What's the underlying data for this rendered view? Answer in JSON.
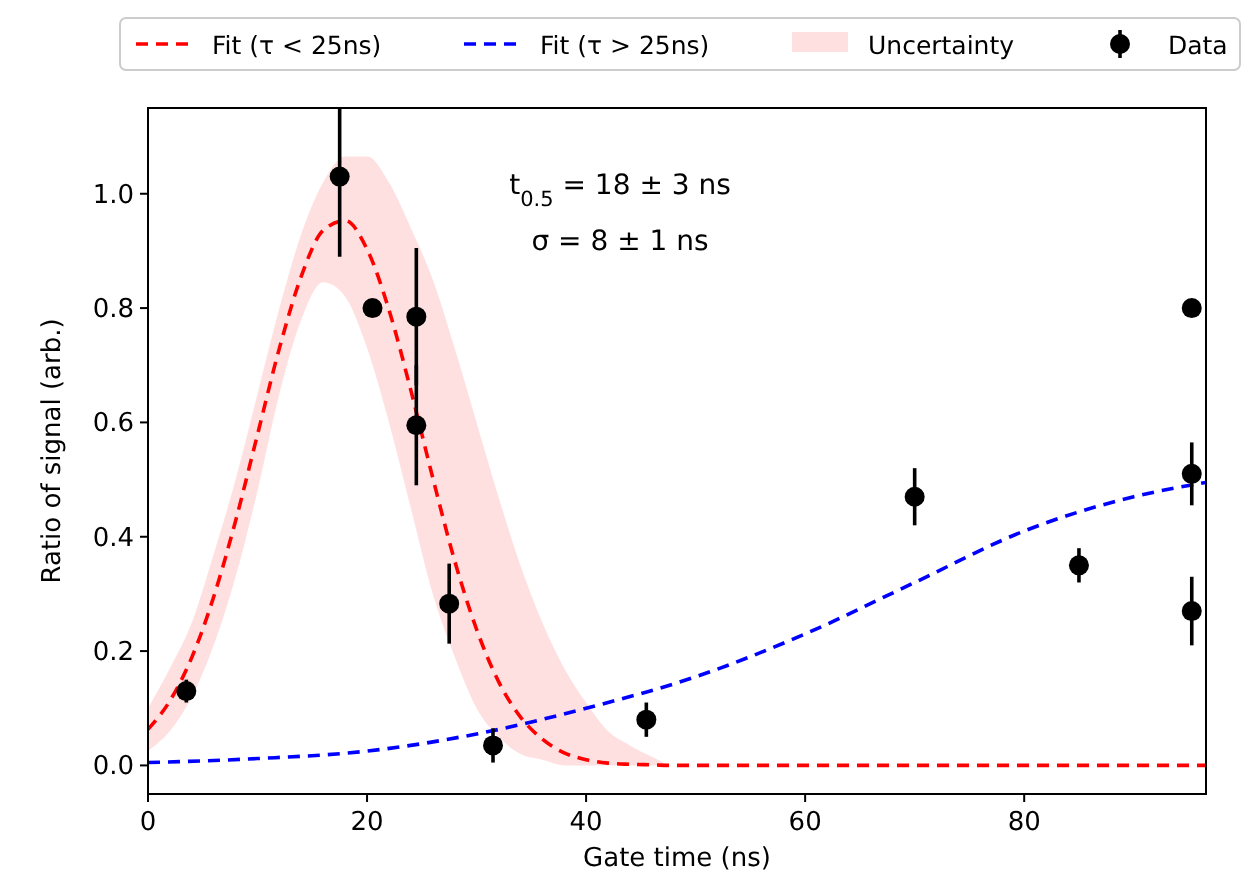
{
  "chart_data": {
    "type": "line",
    "xlabel": "Gate time (ns)",
    "ylabel": "Ratio of signal (arb.)",
    "xlim": [
      0,
      96.6
    ],
    "ylim": [
      -0.05,
      1.15
    ],
    "xticks": [
      0,
      20,
      40,
      60,
      80
    ],
    "yticks": [
      {
        "value": 0,
        "label": "0.0"
      },
      {
        "value": 0.2,
        "label": "0.2"
      },
      {
        "value": 0.4,
        "label": "0.4"
      },
      {
        "value": 0.6,
        "label": "0.6"
      },
      {
        "value": 0.8,
        "label": "0.8"
      },
      {
        "value": 1,
        "label": "1.0"
      }
    ],
    "legend": "top",
    "grid": false,
    "annotations": [
      "t$_{0.5}$ = 18 ± 3 ns",
      "σ = 8 ± 1 ns",
      "Uncertainty"
    ],
    "series": [
      {
        "type": "line",
        "name": "Fit (τ < 25ns)",
        "color": "#ff0000",
        "line_style": "dashed",
        "marker": "none",
        "x": [
          0,
          2,
          4,
          6,
          8,
          10,
          12,
          14,
          16,
          18,
          20,
          22,
          24,
          26,
          28,
          30,
          32,
          34,
          36,
          38,
          40,
          42,
          44,
          46,
          48,
          96.6
        ],
        "values": [
          0.063,
          0.113,
          0.189,
          0.295,
          0.428,
          0.579,
          0.73,
          0.856,
          0.936,
          0.953,
          0.903,
          0.797,
          0.656,
          0.503,
          0.358,
          0.238,
          0.147,
          0.085,
          0.046,
          0.022,
          0.01,
          0.004,
          0.002,
          0.001,
          0,
          0
        ],
        "upper": [
          0.1,
          0.17,
          0.25,
          0.37,
          0.5,
          0.65,
          0.8,
          0.93,
          1.02,
          1.065,
          1.065,
          1.02,
          0.94,
          0.85,
          0.73,
          0.6,
          0.47,
          0.35,
          0.25,
          0.17,
          0.11,
          0.06,
          0.035,
          0.015,
          0,
          0
        ],
        "lower": [
          0.025,
          0.06,
          0.12,
          0.21,
          0.33,
          0.48,
          0.65,
          0.78,
          0.845,
          0.82,
          0.73,
          0.6,
          0.45,
          0.3,
          0.19,
          0.1,
          0.05,
          0.02,
          0.01,
          0,
          0,
          0,
          0,
          0,
          0,
          0
        ]
      },
      {
        "type": "line",
        "name": "Fit (τ > 25ns)",
        "color": "#0000ff",
        "line_style": "dashed",
        "marker": "none",
        "x": [
          0,
          10,
          20,
          30,
          40,
          50,
          60,
          70,
          80,
          90,
          96.6
        ],
        "values": [
          0.005,
          0.012,
          0.025,
          0.055,
          0.1,
          0.155,
          0.23,
          0.32,
          0.41,
          0.47,
          0.495
        ]
      },
      {
        "type": "scatter",
        "name": "Data",
        "color": "#000000",
        "marker": "circle",
        "x": [
          3.5,
          17.5,
          20.5,
          24.5,
          24.5,
          27.5,
          31.5,
          45.5,
          70,
          85,
          95.3,
          95.3,
          95.3
        ],
        "values": [
          0.13,
          1.03,
          0.8,
          0.785,
          0.595,
          0.283,
          0.035,
          0.08,
          0.47,
          0.35,
          0.8,
          0.51,
          0.27
        ],
        "errors": [
          0.02,
          0.14,
          null,
          0.12,
          0.105,
          0.07,
          0.03,
          0.03,
          0.05,
          0.03,
          null,
          0.055,
          0.06
        ]
      }
    ]
  }
}
